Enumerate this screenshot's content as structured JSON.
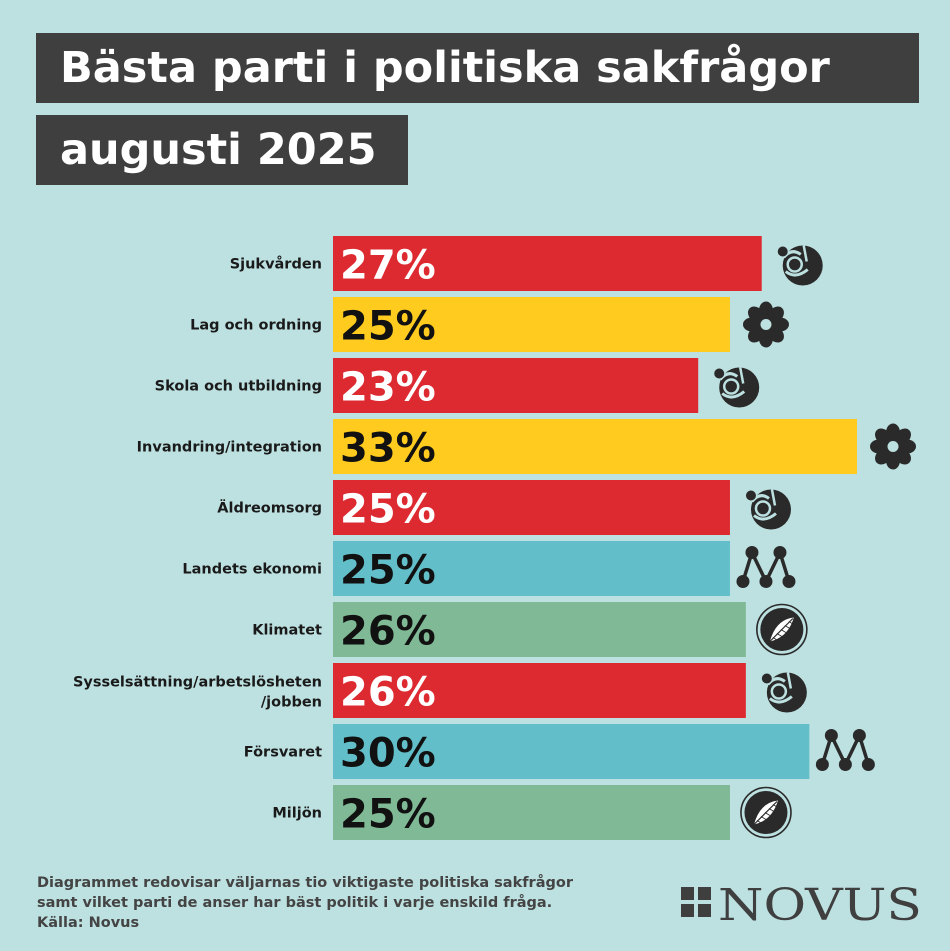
{
  "header": {
    "title_line1": "Bästa parti i politiska sakfrågor",
    "title_line2": "augusti 2025"
  },
  "chart_data": {
    "type": "bar",
    "orientation": "horizontal",
    "categories": [
      "Sjukvården",
      "Lag och ordning",
      "Skola och utbildning",
      "Invandring/integration",
      "Äldreomsorg",
      "Landets ekonomi",
      "Klimatet",
      "Sysselsättning/arbetslösheten /jobben",
      "Försvaret",
      "Miljön"
    ],
    "category_lines": [
      [
        "Sjukvården"
      ],
      [
        "Lag och ordning"
      ],
      [
        "Skola och utbildning"
      ],
      [
        "Invandring/integration"
      ],
      [
        "Äldreomsorg"
      ],
      [
        "Landets ekonomi"
      ],
      [
        "Klimatet"
      ],
      [
        "Sysselsättning/arbetslösheten",
        "/jobben"
      ],
      [
        "Försvaret"
      ],
      [
        "Miljön"
      ]
    ],
    "values": [
      27,
      25,
      23,
      33,
      25,
      25,
      26,
      26,
      30,
      25
    ],
    "value_labels": [
      "27%",
      "25%",
      "23%",
      "33%",
      "25%",
      "25%",
      "26%",
      "26%",
      "30%",
      "25%"
    ],
    "party_icons": [
      "rose-icon",
      "flower-icon",
      "rose-icon",
      "flower-icon",
      "rose-icon",
      "m-icon",
      "feather-icon",
      "rose-icon",
      "m-icon",
      "feather-icon"
    ],
    "bar_colors": [
      "#dd2a31",
      "#fecb1e",
      "#dd2a31",
      "#fecb1e",
      "#dd2a31",
      "#62bfca",
      "#80b995",
      "#dd2a31",
      "#62bfca",
      "#80b995"
    ],
    "label_colors": [
      "#ffffff",
      "#111111",
      "#ffffff",
      "#111111",
      "#ffffff",
      "#111111",
      "#111111",
      "#ffffff",
      "#111111",
      "#111111"
    ],
    "xlim": [
      0,
      33
    ]
  },
  "footnote": {
    "line1": "Diagrammet redovisar väljarnas tio viktigaste politiska sakfrågor",
    "line2": "samt vilket parti de anser har bäst politik i varje enskild fråga.",
    "line3": "Källa: Novus"
  },
  "brand": {
    "logo_text": "NOVUS",
    "color": "#3f3f3f"
  }
}
